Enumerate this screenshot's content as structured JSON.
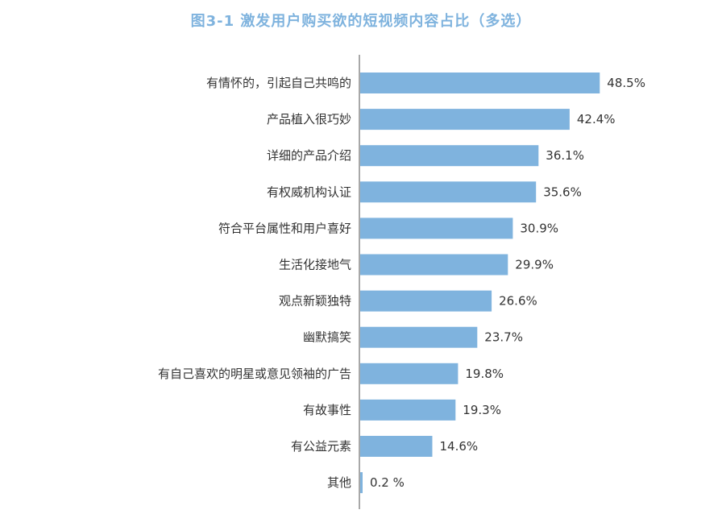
{
  "title": "图3-1  激发用户购买欲的短视频内容占比（多选）",
  "colors": {
    "bar": "#7fb3de",
    "title": "#7fb3de",
    "axis": "#8c8c8c",
    "label": "#333333",
    "value": "#333333"
  },
  "chart_data": {
    "type": "bar",
    "orientation": "horizontal",
    "title": "图3-1  激发用户购买欲的短视频内容占比（多选）",
    "unit": "%",
    "xlim": [
      0,
      50
    ],
    "grid": false,
    "categories": [
      "有情怀的，引起自己共鸣的",
      "产品植入很巧妙",
      "详细的产品介绍",
      "有权威机构认证",
      "符合平台属性和用户喜好",
      "生活化接地气",
      "观点新颖独特",
      "幽默搞笑",
      "有自己喜欢的明星或意见领袖的广告",
      "有故事性",
      "有公益元素",
      "其他"
    ],
    "values": [
      48.5,
      42.4,
      36.1,
      35.6,
      30.9,
      29.9,
      26.6,
      23.7,
      19.8,
      19.3,
      14.6,
      0.2
    ],
    "value_labels": [
      "48.5%",
      "42.4%",
      "36.1%",
      "35.6%",
      "30.9%",
      "29.9%",
      "26.6%",
      "23.7%",
      "19.8%",
      "19.3%",
      "14.6%",
      "0.2 %"
    ]
  }
}
